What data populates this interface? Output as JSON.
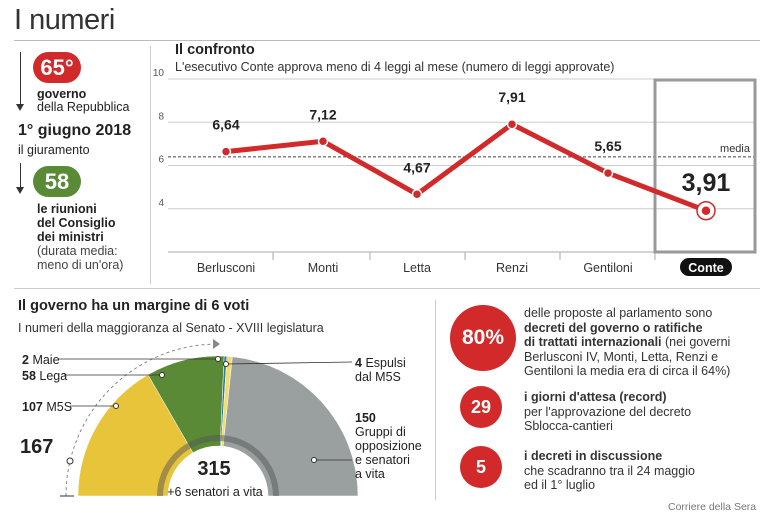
{
  "header": {
    "title": "I numeri"
  },
  "left": {
    "gov_number": "65°",
    "gov_label_bold": "governo",
    "gov_label": "della Repubblica",
    "date": "1° giugno 2018",
    "date_label": "il giuramento",
    "meetings": "58",
    "meetings_bold": [
      "le riunioni",
      "del Consiglio",
      "dei ministri"
    ],
    "meetings_note": [
      "(durata media:",
      "meno di un'ora)"
    ]
  },
  "chart_data": {
    "type": "line",
    "title": "Il confronto",
    "subtitle": "L'esecutivo Conte approva meno di 4 leggi al mese (numero di leggi approvate)",
    "categories": [
      "Berlusconi",
      "Monti",
      "Letta",
      "Renzi",
      "Gentiloni",
      "Conte"
    ],
    "series": [
      {
        "values": [
          6.64,
          7.12,
          4.67,
          7.91,
          5.65,
          3.91
        ]
      }
    ],
    "value_labels": [
      "6,64",
      "7,12",
      "4,67",
      "7,91",
      "5,65",
      "3,91"
    ],
    "reference_line": {
      "label": "media",
      "value": 6.4
    },
    "yticks": [
      "4",
      "6",
      "8",
      "10"
    ],
    "ylim": [
      2,
      10
    ],
    "grid": true,
    "highlight_category": "Conte",
    "colors": {
      "line": "#d22a2a",
      "grid": "#cccccc",
      "highlight_box": "#999999"
    }
  },
  "margin_section": {
    "title": "Il governo ha un margine di 6 voti",
    "subtitle": "I numeri della maggioranza al Senato - XVIII legislatura",
    "majority_threshold": "167",
    "total": "315",
    "total_note": "+6 senatori a vita",
    "groups": [
      {
        "num": "2",
        "name": "Maie",
        "value": 2,
        "color": "#2e7d9e"
      },
      {
        "num": "58",
        "name": "Lega",
        "value": 58,
        "color": "#5a8a35"
      },
      {
        "num": "107",
        "name": "M5S",
        "value": 107,
        "color": "#e8c43a"
      },
      {
        "num": "4",
        "name": "Espulsi",
        "name2": "dal M5S",
        "value": 4,
        "color": "#f2dd6a"
      },
      {
        "num": "150",
        "lines": [
          "Gruppi di",
          "opposizione",
          "e senatori",
          "a vita"
        ],
        "value": 150,
        "color": "#9aa0a0"
      }
    ]
  },
  "stats": [
    {
      "value": "80%",
      "lines_bold": [
        "decreti del governo o ratifiche",
        "di trattati internazionali"
      ],
      "line_pre": "delle proposte al parlamento sono",
      "lines_after": [
        "(nei governi",
        "Berlusconi IV, Monti, Letta, Renzi e",
        "Gentiloni la media era di circa il 64%)"
      ]
    },
    {
      "value": "29",
      "lines_bold": [
        "i giorni d'attesa (record)"
      ],
      "lines_after": [
        "per l'approvazione del decreto",
        "Sblocca-cantieri"
      ]
    },
    {
      "value": "5",
      "lines_bold": [
        "i decreti in discussione"
      ],
      "lines_after": [
        "che scadranno tra il 24 maggio",
        "ed il 1° luglio"
      ]
    }
  ],
  "credit": "Corriere della Sera"
}
